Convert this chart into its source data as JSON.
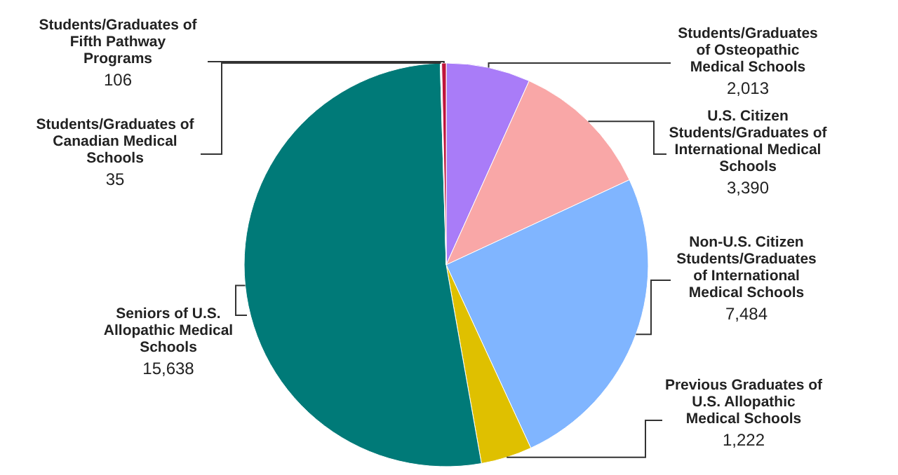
{
  "chart_data": {
    "type": "pie",
    "categories": [
      "Students/Graduates of Osteopathic Medical Schools",
      "U.S. Citizen Students/Graduates of International Medical Schools",
      "Non-U.S. Citizen Students/Graduates of International Medical Schools",
      "Previous Graduates of U.S. Allopathic Medical Schools",
      "Seniors of U.S. Allopathic Medical Schools",
      "Students/Graduates of Canadian Medical Schools",
      "Students/Graduates of Fifth Pathway Programs"
    ],
    "values": [
      2013,
      3390,
      7484,
      1222,
      15638,
      35,
      106
    ],
    "value_labels": [
      "2,013",
      "3,390",
      "7,484",
      "1,222",
      "15,638",
      "35",
      "106"
    ],
    "colors": [
      "#a97cf8",
      "#f9a7a7",
      "#80b5ff",
      "#dfc000",
      "#007a78",
      "#f4f4f4",
      "#c0143c"
    ]
  }
}
